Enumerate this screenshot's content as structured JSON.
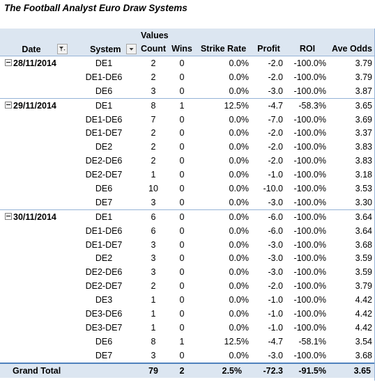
{
  "title": "The Football Analyst Euro Draw Systems",
  "header": {
    "values_label": "Values",
    "date": "Date",
    "system": "System",
    "count": "Count",
    "wins": "Wins",
    "strike_rate": "Strike Rate",
    "profit": "Profit",
    "roi": "ROI",
    "ave_odds": "Ave Odds"
  },
  "groups": [
    {
      "date": "28/11/2014",
      "rows": [
        {
          "system": "DE1",
          "count": "2",
          "wins": "0",
          "strike": "0.0%",
          "profit": "-2.0",
          "roi": "-100.0%",
          "odds": "3.79"
        },
        {
          "system": "DE1-DE6",
          "count": "2",
          "wins": "0",
          "strike": "0.0%",
          "profit": "-2.0",
          "roi": "-100.0%",
          "odds": "3.79"
        },
        {
          "system": "DE6",
          "count": "3",
          "wins": "0",
          "strike": "0.0%",
          "profit": "-3.0",
          "roi": "-100.0%",
          "odds": "3.87"
        }
      ]
    },
    {
      "date": "29/11/2014",
      "rows": [
        {
          "system": "DE1",
          "count": "8",
          "wins": "1",
          "strike": "12.5%",
          "profit": "-4.7",
          "roi": "-58.3%",
          "odds": "3.65"
        },
        {
          "system": "DE1-DE6",
          "count": "7",
          "wins": "0",
          "strike": "0.0%",
          "profit": "-7.0",
          "roi": "-100.0%",
          "odds": "3.69"
        },
        {
          "system": "DE1-DE7",
          "count": "2",
          "wins": "0",
          "strike": "0.0%",
          "profit": "-2.0",
          "roi": "-100.0%",
          "odds": "3.37"
        },
        {
          "system": "DE2",
          "count": "2",
          "wins": "0",
          "strike": "0.0%",
          "profit": "-2.0",
          "roi": "-100.0%",
          "odds": "3.83"
        },
        {
          "system": "DE2-DE6",
          "count": "2",
          "wins": "0",
          "strike": "0.0%",
          "profit": "-2.0",
          "roi": "-100.0%",
          "odds": "3.83"
        },
        {
          "system": "DE2-DE7",
          "count": "1",
          "wins": "0",
          "strike": "0.0%",
          "profit": "-1.0",
          "roi": "-100.0%",
          "odds": "3.18"
        },
        {
          "system": "DE6",
          "count": "10",
          "wins": "0",
          "strike": "0.0%",
          "profit": "-10.0",
          "roi": "-100.0%",
          "odds": "3.53"
        },
        {
          "system": "DE7",
          "count": "3",
          "wins": "0",
          "strike": "0.0%",
          "profit": "-3.0",
          "roi": "-100.0%",
          "odds": "3.30"
        }
      ]
    },
    {
      "date": "30/11/2014",
      "rows": [
        {
          "system": "DE1",
          "count": "6",
          "wins": "0",
          "strike": "0.0%",
          "profit": "-6.0",
          "roi": "-100.0%",
          "odds": "3.64"
        },
        {
          "system": "DE1-DE6",
          "count": "6",
          "wins": "0",
          "strike": "0.0%",
          "profit": "-6.0",
          "roi": "-100.0%",
          "odds": "3.64"
        },
        {
          "system": "DE1-DE7",
          "count": "3",
          "wins": "0",
          "strike": "0.0%",
          "profit": "-3.0",
          "roi": "-100.0%",
          "odds": "3.68"
        },
        {
          "system": "DE2",
          "count": "3",
          "wins": "0",
          "strike": "0.0%",
          "profit": "-3.0",
          "roi": "-100.0%",
          "odds": "3.59"
        },
        {
          "system": "DE2-DE6",
          "count": "3",
          "wins": "0",
          "strike": "0.0%",
          "profit": "-3.0",
          "roi": "-100.0%",
          "odds": "3.59"
        },
        {
          "system": "DE2-DE7",
          "count": "2",
          "wins": "0",
          "strike": "0.0%",
          "profit": "-2.0",
          "roi": "-100.0%",
          "odds": "3.79"
        },
        {
          "system": "DE3",
          "count": "1",
          "wins": "0",
          "strike": "0.0%",
          "profit": "-1.0",
          "roi": "-100.0%",
          "odds": "4.42"
        },
        {
          "system": "DE3-DE6",
          "count": "1",
          "wins": "0",
          "strike": "0.0%",
          "profit": "-1.0",
          "roi": "-100.0%",
          "odds": "4.42"
        },
        {
          "system": "DE3-DE7",
          "count": "1",
          "wins": "0",
          "strike": "0.0%",
          "profit": "-1.0",
          "roi": "-100.0%",
          "odds": "4.42"
        },
        {
          "system": "DE6",
          "count": "8",
          "wins": "1",
          "strike": "12.5%",
          "profit": "-4.7",
          "roi": "-58.1%",
          "odds": "3.54"
        },
        {
          "system": "DE7",
          "count": "3",
          "wins": "0",
          "strike": "0.0%",
          "profit": "-3.0",
          "roi": "-100.0%",
          "odds": "3.68"
        }
      ]
    }
  ],
  "total": {
    "label": "Grand Total",
    "count": "79",
    "wins": "2",
    "strike": "2.5%",
    "profit": "-72.3",
    "roi": "-91.5%",
    "odds": "3.65"
  },
  "icons": {
    "date_filter": "filter-dropdown-icon",
    "system_dropdown": "chevron-down-icon",
    "collapse": "collapse-toggle-icon"
  }
}
